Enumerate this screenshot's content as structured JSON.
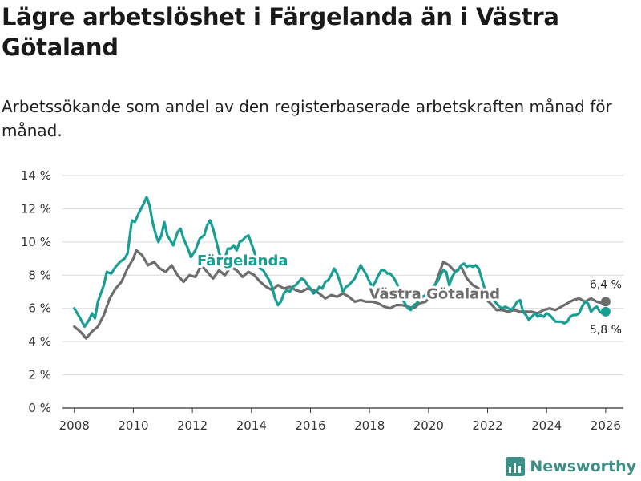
{
  "title": "Lägre arbetslöshet i Färgelanda än i Västra Götaland",
  "subtitle": "Arbetssökande som andel av den registerbaserade arbetskraften månad för månad.",
  "brand": {
    "name": "Newsworthy",
    "icon": "bar-chart-icon",
    "color": "#3c8f86"
  },
  "chart_data": {
    "type": "line",
    "title": "Lägre arbetslöshet i Färgelanda än i Västra Götaland",
    "xlabel": "",
    "ylabel": "",
    "xlim": [
      2007.6,
      2026.6
    ],
    "ylim": [
      0,
      14
    ],
    "grid": true,
    "x_ticks": [
      2008,
      2010,
      2012,
      2014,
      2016,
      2018,
      2020,
      2022,
      2024,
      2026
    ],
    "x_tick_labels": [
      "2008",
      "2010",
      "2012",
      "2014",
      "2016",
      "2018",
      "2020",
      "2022",
      "2024",
      "2026"
    ],
    "y_ticks": [
      0,
      2,
      4,
      6,
      8,
      10,
      12,
      14
    ],
    "y_tick_labels": [
      "0 %",
      "2 %",
      "4 %",
      "6 %",
      "8 %",
      "10 %",
      "12 %",
      "14 %"
    ],
    "series": [
      {
        "name": "Västra Götaland",
        "color": "#6d6d6d",
        "end_label": "6,4 %",
        "points": [
          [
            2008.0,
            4.9
          ],
          [
            2008.2,
            4.6
          ],
          [
            2008.4,
            4.2
          ],
          [
            2008.6,
            4.6
          ],
          [
            2008.8,
            4.9
          ],
          [
            2009.0,
            5.6
          ],
          [
            2009.2,
            6.6
          ],
          [
            2009.4,
            7.2
          ],
          [
            2009.6,
            7.6
          ],
          [
            2009.8,
            8.4
          ],
          [
            2010.0,
            9.0
          ],
          [
            2010.1,
            9.5
          ],
          [
            2010.3,
            9.2
          ],
          [
            2010.5,
            8.6
          ],
          [
            2010.7,
            8.8
          ],
          [
            2010.9,
            8.4
          ],
          [
            2011.1,
            8.2
          ],
          [
            2011.3,
            8.6
          ],
          [
            2011.5,
            8.0
          ],
          [
            2011.7,
            7.6
          ],
          [
            2011.9,
            8.0
          ],
          [
            2012.1,
            7.9
          ],
          [
            2012.3,
            8.6
          ],
          [
            2012.5,
            8.2
          ],
          [
            2012.7,
            7.8
          ],
          [
            2012.9,
            8.3
          ],
          [
            2013.1,
            8.0
          ],
          [
            2013.3,
            8.5
          ],
          [
            2013.5,
            8.3
          ],
          [
            2013.7,
            7.9
          ],
          [
            2013.9,
            8.2
          ],
          [
            2014.1,
            8.0
          ],
          [
            2014.3,
            7.6
          ],
          [
            2014.5,
            7.3
          ],
          [
            2014.7,
            7.1
          ],
          [
            2014.9,
            7.4
          ],
          [
            2015.1,
            7.2
          ],
          [
            2015.3,
            7.3
          ],
          [
            2015.5,
            7.1
          ],
          [
            2015.7,
            7.0
          ],
          [
            2015.9,
            7.2
          ],
          [
            2016.1,
            7.1
          ],
          [
            2016.3,
            6.9
          ],
          [
            2016.5,
            6.6
          ],
          [
            2016.7,
            6.8
          ],
          [
            2016.9,
            6.7
          ],
          [
            2017.1,
            6.9
          ],
          [
            2017.3,
            6.7
          ],
          [
            2017.5,
            6.4
          ],
          [
            2017.7,
            6.5
          ],
          [
            2017.9,
            6.4
          ],
          [
            2018.1,
            6.4
          ],
          [
            2018.3,
            6.3
          ],
          [
            2018.5,
            6.1
          ],
          [
            2018.7,
            6.0
          ],
          [
            2018.9,
            6.2
          ],
          [
            2019.1,
            6.2
          ],
          [
            2019.3,
            6.1
          ],
          [
            2019.5,
            6.0
          ],
          [
            2019.7,
            6.3
          ],
          [
            2019.9,
            6.4
          ],
          [
            2020.1,
            6.8
          ],
          [
            2020.3,
            7.8
          ],
          [
            2020.5,
            8.8
          ],
          [
            2020.7,
            8.6
          ],
          [
            2020.9,
            8.2
          ],
          [
            2021.1,
            8.5
          ],
          [
            2021.3,
            7.8
          ],
          [
            2021.5,
            7.4
          ],
          [
            2021.7,
            7.2
          ],
          [
            2021.9,
            6.6
          ],
          [
            2022.1,
            6.3
          ],
          [
            2022.3,
            5.9
          ],
          [
            2022.5,
            5.9
          ],
          [
            2022.7,
            5.8
          ],
          [
            2022.9,
            5.9
          ],
          [
            2023.1,
            5.8
          ],
          [
            2023.3,
            5.8
          ],
          [
            2023.5,
            5.8
          ],
          [
            2023.7,
            5.7
          ],
          [
            2023.9,
            5.9
          ],
          [
            2024.1,
            6.0
          ],
          [
            2024.3,
            5.9
          ],
          [
            2024.5,
            6.1
          ],
          [
            2024.7,
            6.3
          ],
          [
            2024.9,
            6.5
          ],
          [
            2025.1,
            6.6
          ],
          [
            2025.3,
            6.4
          ],
          [
            2025.5,
            6.6
          ],
          [
            2025.7,
            6.4
          ],
          [
            2025.9,
            6.3
          ],
          [
            2026.0,
            6.4
          ]
        ]
      },
      {
        "name": "Färgelanda",
        "color": "#199e94",
        "end_label": "5,8 %",
        "points": [
          [
            2008.0,
            6.0
          ],
          [
            2008.2,
            5.4
          ],
          [
            2008.35,
            4.9
          ],
          [
            2008.5,
            5.3
          ],
          [
            2008.6,
            5.7
          ],
          [
            2008.7,
            5.4
          ],
          [
            2008.8,
            6.4
          ],
          [
            2009.0,
            7.4
          ],
          [
            2009.1,
            8.2
          ],
          [
            2009.25,
            8.1
          ],
          [
            2009.4,
            8.5
          ],
          [
            2009.55,
            8.8
          ],
          [
            2009.7,
            9.0
          ],
          [
            2009.8,
            9.3
          ],
          [
            2009.95,
            11.3
          ],
          [
            2010.05,
            11.2
          ],
          [
            2010.2,
            11.8
          ],
          [
            2010.35,
            12.3
          ],
          [
            2010.45,
            12.7
          ],
          [
            2010.55,
            12.2
          ],
          [
            2010.65,
            11.2
          ],
          [
            2010.75,
            10.5
          ],
          [
            2010.85,
            10.0
          ],
          [
            2010.95,
            10.4
          ],
          [
            2011.05,
            11.2
          ],
          [
            2011.15,
            10.4
          ],
          [
            2011.25,
            10.1
          ],
          [
            2011.35,
            9.8
          ],
          [
            2011.5,
            10.6
          ],
          [
            2011.6,
            10.8
          ],
          [
            2011.7,
            10.2
          ],
          [
            2011.85,
            9.6
          ],
          [
            2011.95,
            9.1
          ],
          [
            2012.1,
            9.5
          ],
          [
            2012.25,
            10.2
          ],
          [
            2012.4,
            10.4
          ],
          [
            2012.5,
            11.0
          ],
          [
            2012.6,
            11.3
          ],
          [
            2012.7,
            10.8
          ],
          [
            2012.8,
            10.1
          ],
          [
            2012.9,
            9.4
          ],
          [
            2013.0,
            8.8
          ],
          [
            2013.1,
            9.0
          ],
          [
            2013.2,
            9.6
          ],
          [
            2013.3,
            9.6
          ],
          [
            2013.4,
            9.8
          ],
          [
            2013.5,
            9.5
          ],
          [
            2013.6,
            10.0
          ],
          [
            2013.7,
            10.1
          ],
          [
            2013.8,
            10.3
          ],
          [
            2013.9,
            10.4
          ],
          [
            2014.0,
            9.9
          ],
          [
            2014.1,
            9.4
          ],
          [
            2014.2,
            8.7
          ],
          [
            2014.3,
            8.4
          ],
          [
            2014.4,
            8.3
          ],
          [
            2014.5,
            8.0
          ],
          [
            2014.6,
            7.7
          ],
          [
            2014.7,
            7.3
          ],
          [
            2014.8,
            6.6
          ],
          [
            2014.9,
            6.2
          ],
          [
            2015.0,
            6.4
          ],
          [
            2015.1,
            6.9
          ],
          [
            2015.2,
            7.1
          ],
          [
            2015.3,
            7.0
          ],
          [
            2015.4,
            7.3
          ],
          [
            2015.5,
            7.4
          ],
          [
            2015.6,
            7.6
          ],
          [
            2015.7,
            7.8
          ],
          [
            2015.8,
            7.7
          ],
          [
            2015.9,
            7.4
          ],
          [
            2016.0,
            7.2
          ],
          [
            2016.1,
            6.9
          ],
          [
            2016.2,
            7.0
          ],
          [
            2016.3,
            7.3
          ],
          [
            2016.4,
            7.2
          ],
          [
            2016.5,
            7.6
          ],
          [
            2016.6,
            7.7
          ],
          [
            2016.7,
            8.0
          ],
          [
            2016.8,
            8.4
          ],
          [
            2016.9,
            8.1
          ],
          [
            2017.0,
            7.6
          ],
          [
            2017.1,
            7.0
          ],
          [
            2017.2,
            7.3
          ],
          [
            2017.3,
            7.4
          ],
          [
            2017.4,
            7.6
          ],
          [
            2017.5,
            7.8
          ],
          [
            2017.6,
            8.2
          ],
          [
            2017.7,
            8.6
          ],
          [
            2017.8,
            8.3
          ],
          [
            2017.9,
            8.0
          ],
          [
            2018.0,
            7.6
          ],
          [
            2018.1,
            7.3
          ],
          [
            2018.2,
            7.6
          ],
          [
            2018.3,
            8.0
          ],
          [
            2018.4,
            8.3
          ],
          [
            2018.5,
            8.3
          ],
          [
            2018.6,
            8.1
          ],
          [
            2018.7,
            8.1
          ],
          [
            2018.8,
            7.9
          ],
          [
            2018.9,
            7.6
          ],
          [
            2019.0,
            7.2
          ],
          [
            2019.1,
            6.6
          ],
          [
            2019.2,
            6.3
          ],
          [
            2019.3,
            6.0
          ],
          [
            2019.4,
            5.9
          ],
          [
            2019.5,
            6.2
          ],
          [
            2019.6,
            6.3
          ],
          [
            2019.7,
            6.6
          ],
          [
            2019.8,
            6.7
          ],
          [
            2019.9,
            6.8
          ],
          [
            2020.0,
            6.9
          ],
          [
            2020.1,
            7.2
          ],
          [
            2020.2,
            7.4
          ],
          [
            2020.3,
            7.6
          ],
          [
            2020.4,
            8.0
          ],
          [
            2020.5,
            8.3
          ],
          [
            2020.6,
            8.2
          ],
          [
            2020.7,
            7.4
          ],
          [
            2020.8,
            7.9
          ],
          [
            2020.9,
            8.2
          ],
          [
            2021.0,
            8.3
          ],
          [
            2021.1,
            8.6
          ],
          [
            2021.2,
            8.7
          ],
          [
            2021.3,
            8.5
          ],
          [
            2021.4,
            8.6
          ],
          [
            2021.5,
            8.5
          ],
          [
            2021.6,
            8.6
          ],
          [
            2021.7,
            8.4
          ],
          [
            2021.8,
            7.8
          ],
          [
            2021.9,
            7.2
          ],
          [
            2022.0,
            6.8
          ],
          [
            2022.1,
            6.6
          ],
          [
            2022.2,
            6.5
          ],
          [
            2022.3,
            6.3
          ],
          [
            2022.4,
            6.1
          ],
          [
            2022.5,
            6.0
          ],
          [
            2022.6,
            6.1
          ],
          [
            2022.7,
            6.0
          ],
          [
            2022.8,
            5.9
          ],
          [
            2022.9,
            6.1
          ],
          [
            2023.0,
            6.4
          ],
          [
            2023.1,
            6.5
          ],
          [
            2023.2,
            5.8
          ],
          [
            2023.3,
            5.6
          ],
          [
            2023.4,
            5.3
          ],
          [
            2023.5,
            5.5
          ],
          [
            2023.6,
            5.7
          ],
          [
            2023.7,
            5.5
          ],
          [
            2023.8,
            5.6
          ],
          [
            2023.9,
            5.5
          ],
          [
            2024.0,
            5.7
          ],
          [
            2024.1,
            5.6
          ],
          [
            2024.2,
            5.4
          ],
          [
            2024.3,
            5.2
          ],
          [
            2024.4,
            5.2
          ],
          [
            2024.5,
            5.2
          ],
          [
            2024.6,
            5.1
          ],
          [
            2024.7,
            5.2
          ],
          [
            2024.8,
            5.5
          ],
          [
            2024.9,
            5.6
          ],
          [
            2025.0,
            5.6
          ],
          [
            2025.1,
            5.7
          ],
          [
            2025.2,
            6.1
          ],
          [
            2025.3,
            6.4
          ],
          [
            2025.4,
            6.3
          ],
          [
            2025.5,
            5.8
          ],
          [
            2025.6,
            6.0
          ],
          [
            2025.7,
            6.1
          ],
          [
            2025.8,
            5.8
          ],
          [
            2025.9,
            5.7
          ],
          [
            2026.0,
            5.8
          ]
        ]
      }
    ],
    "annotations": [
      {
        "text": "Färgelanda",
        "x": 2013.7,
        "y": 8.6,
        "series": "Färgelanda"
      },
      {
        "text": "Västra Götaland",
        "x": 2020.2,
        "y": 6.6,
        "series": "Västra Götaland"
      }
    ]
  }
}
